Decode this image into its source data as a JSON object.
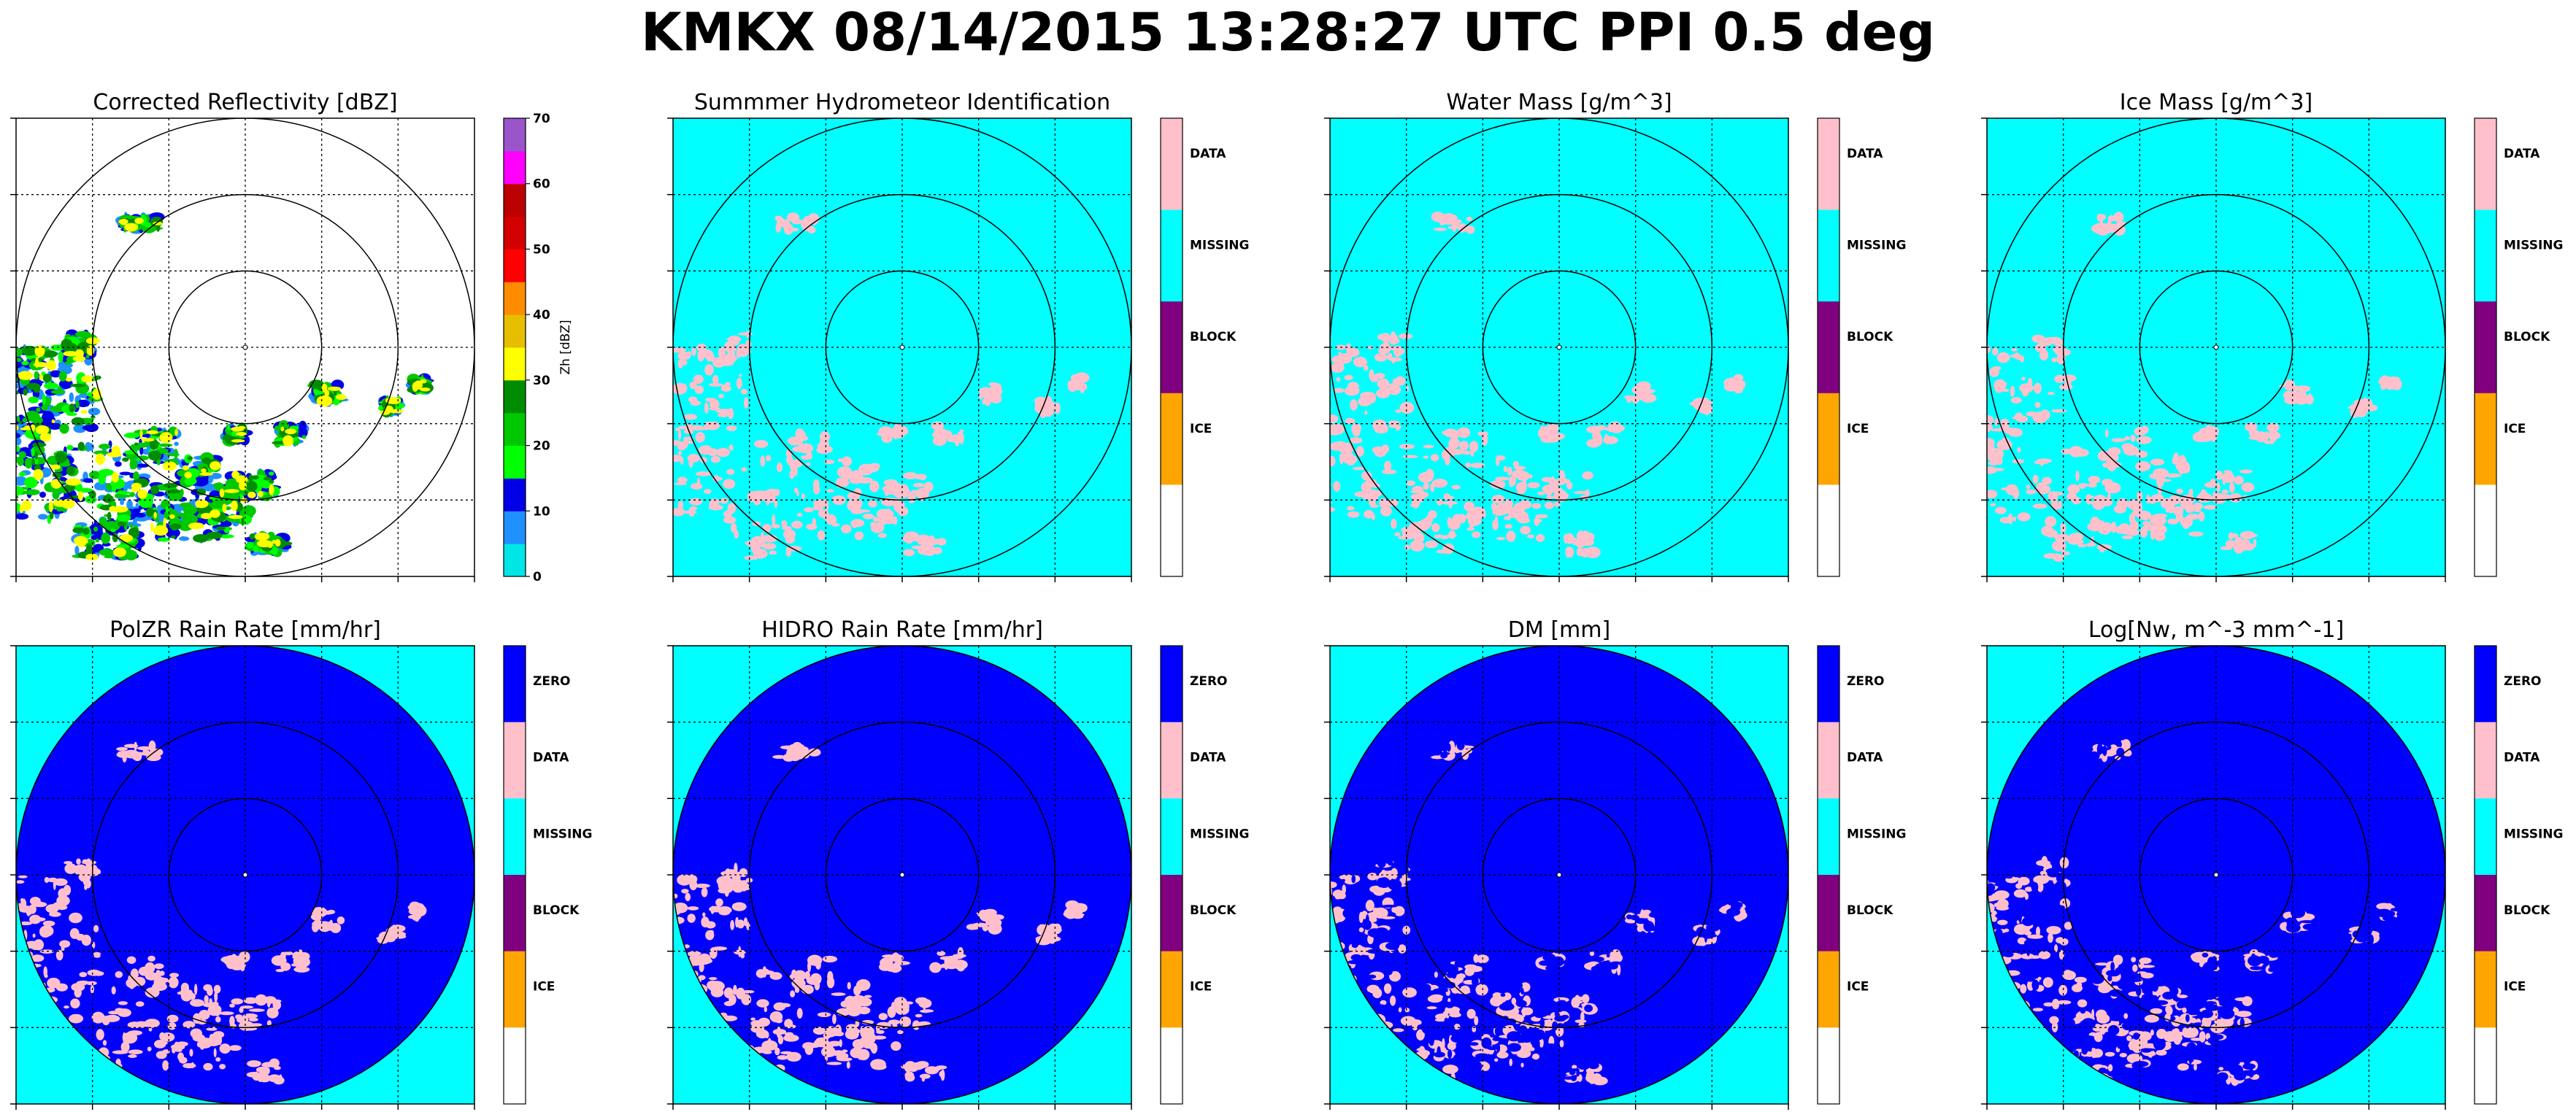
{
  "suptitle": "KMKX 08/14/2015 13:28:27 UTC PPI 0.5 deg",
  "colors": {
    "cyan": "#00ffff",
    "pink": "#ffc0cb",
    "blue": "#0000ff",
    "purple": "#800080",
    "orange": "#ffa500",
    "white": "#ffffff"
  },
  "chart_data": [
    {
      "type": "heatmap",
      "title": "Corrected Reflectivity [dBZ]",
      "colorbar": {
        "kind": "continuous",
        "label": "Zh [dBZ]",
        "ticks": [
          "0",
          "10",
          "20",
          "30",
          "40",
          "50",
          "60",
          "70"
        ],
        "range": [
          0,
          70
        ],
        "bands": [
          "#00e6e6",
          "#1e90ff",
          "#0000e6",
          "#00ff00",
          "#00c800",
          "#008c00",
          "#ffff00",
          "#e6be00",
          "#ff8c00",
          "#ff0000",
          "#d40000",
          "#bd0000",
          "#ff00ff",
          "#9955c9"
        ]
      },
      "background": "#ffffff",
      "rings": 3,
      "grid": true
    },
    {
      "type": "heatmap",
      "title": "Summmer Hydrometeor Identification",
      "colorbar": {
        "kind": "categorical",
        "labels": [
          "DATA",
          "MISSING",
          "BLOCK",
          "ICE",
          ""
        ],
        "colors": [
          "#ffc0cb",
          "#00ffff",
          "#800080",
          "#ffa500",
          "#ffffff"
        ]
      },
      "background": "#00ffff",
      "rings": 3,
      "grid": true
    },
    {
      "type": "heatmap",
      "title": "Water Mass [g/m^3]",
      "colorbar": {
        "kind": "categorical",
        "labels": [
          "DATA",
          "MISSING",
          "BLOCK",
          "ICE",
          ""
        ],
        "colors": [
          "#ffc0cb",
          "#00ffff",
          "#800080",
          "#ffa500",
          "#ffffff"
        ]
      },
      "background": "#00ffff",
      "rings": 3,
      "grid": true
    },
    {
      "type": "heatmap",
      "title": "Ice Mass [g/m^3]",
      "colorbar": {
        "kind": "categorical",
        "labels": [
          "DATA",
          "MISSING",
          "BLOCK",
          "ICE",
          ""
        ],
        "colors": [
          "#ffc0cb",
          "#00ffff",
          "#800080",
          "#ffa500",
          "#ffffff"
        ]
      },
      "background": "#00ffff",
      "rings": 3,
      "grid": true
    },
    {
      "type": "heatmap",
      "title": "PolZR Rain Rate [mm/hr]",
      "colorbar": {
        "kind": "categorical",
        "labels": [
          "ZERO",
          "DATA",
          "MISSING",
          "BLOCK",
          "ICE",
          ""
        ],
        "colors": [
          "#0000ff",
          "#ffc0cb",
          "#00ffff",
          "#800080",
          "#ffa500",
          "#ffffff"
        ]
      },
      "background": "#00ffff",
      "disk": "#0000ff",
      "rings": 3,
      "grid": true
    },
    {
      "type": "heatmap",
      "title": "HIDRO Rain Rate [mm/hr]",
      "colorbar": {
        "kind": "categorical",
        "labels": [
          "ZERO",
          "DATA",
          "MISSING",
          "BLOCK",
          "ICE",
          ""
        ],
        "colors": [
          "#0000ff",
          "#ffc0cb",
          "#00ffff",
          "#800080",
          "#ffa500",
          "#ffffff"
        ]
      },
      "background": "#00ffff",
      "disk": "#0000ff",
      "rings": 3,
      "grid": true
    },
    {
      "type": "heatmap",
      "title": "DM [mm]",
      "colorbar": {
        "kind": "categorical",
        "labels": [
          "ZERO",
          "DATA",
          "MISSING",
          "BLOCK",
          "ICE",
          ""
        ],
        "colors": [
          "#0000ff",
          "#ffc0cb",
          "#00ffff",
          "#800080",
          "#ffa500",
          "#ffffff"
        ]
      },
      "background": "#00ffff",
      "disk": "#0000ff",
      "rings": 3,
      "grid": true
    },
    {
      "type": "heatmap",
      "title": "Log[Nw, m^-3 mm^-1]",
      "colorbar": {
        "kind": "categorical",
        "labels": [
          "ZERO",
          "DATA",
          "MISSING",
          "BLOCK",
          "ICE",
          ""
        ],
        "colors": [
          "#0000ff",
          "#ffc0cb",
          "#00ffff",
          "#800080",
          "#ffa500",
          "#ffffff"
        ]
      },
      "background": "#00ffff",
      "disk": "#0000ff",
      "rings": 3,
      "grid": true
    }
  ]
}
